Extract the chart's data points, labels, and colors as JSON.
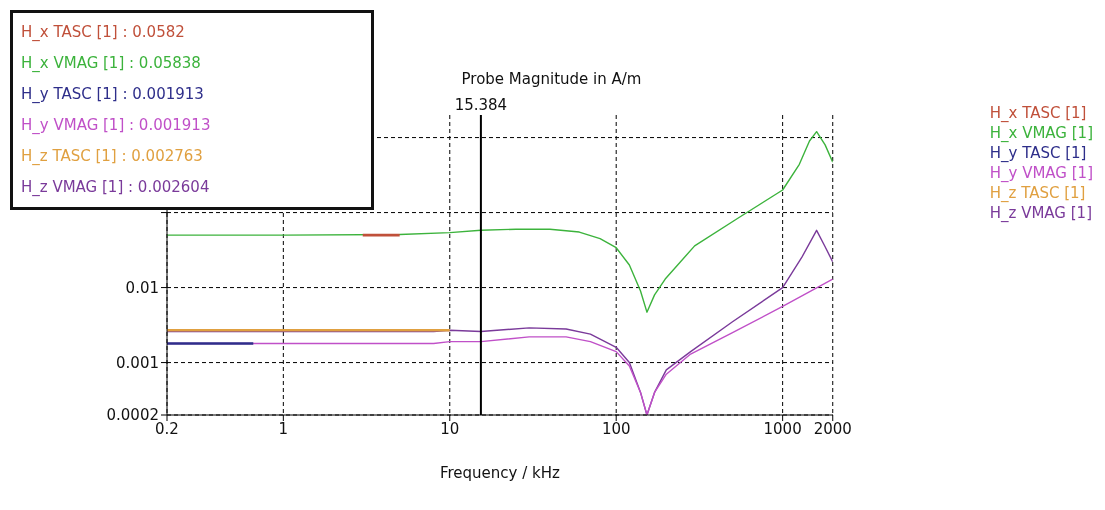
{
  "chart_data": {
    "type": "line",
    "title": "Probe Magnitude in A/m",
    "xlabel": "Frequency / kHz",
    "log": "xy",
    "grid": true,
    "legend": "right",
    "xlim": [
      0.2,
      2000
    ],
    "xticks": [
      0.2,
      1,
      10,
      100,
      1000,
      2000
    ],
    "ylim": [
      0.0002,
      2
    ],
    "yticks": [
      0.0002,
      0.001,
      0.01,
      {
        "value": 0.1,
        "label": null
      },
      {
        "value": 1,
        "label": null
      }
    ],
    "ref_lines": [
      {
        "axis": "x",
        "value": 15.384,
        "label": "15.384",
        "color": "#000000"
      }
    ],
    "annotations": [
      "H_x TASC [1] : 0.0582",
      "H_x VMAG [1] : 0.05838",
      "H_y TASC [1] : 0.001913",
      "H_y VMAG [1] : 0.001913",
      "H_z TASC [1] : 0.002763",
      "H_z VMAG [1] : 0.002604"
    ],
    "series": [
      {
        "name": "H_x TASC [1]",
        "color": "#c0503a",
        "x": [
          3,
          4,
          5
        ],
        "values": [
          0.05,
          0.05,
          0.05
        ]
      },
      {
        "name": "H_x VMAG [1]",
        "color": "#3cb33c",
        "x": [
          0.2,
          1,
          5,
          10,
          15.384,
          25,
          40,
          60,
          80,
          100,
          120,
          140,
          153,
          170,
          197,
          296,
          547,
          1000,
          1260,
          1450,
          1600,
          1800,
          2000
        ],
        "values": [
          0.05,
          0.05,
          0.051,
          0.054,
          0.058,
          0.06,
          0.06,
          0.055,
          0.045,
          0.034,
          0.02,
          0.009,
          0.0047,
          0.008,
          0.013,
          0.036,
          0.086,
          0.2,
          0.44,
          0.9,
          1.2,
          0.8,
          0.47
        ]
      },
      {
        "name": "H_y TASC [1]",
        "color": "#2e2e8a",
        "x": [
          0.2,
          0.4,
          0.66
        ],
        "values": [
          0.0018,
          0.0018,
          0.0018
        ]
      },
      {
        "name": "H_y VMAG [1]",
        "color": "#c050c8",
        "x": [
          0.2,
          1,
          8,
          10,
          15.384,
          30,
          50,
          70,
          100,
          120,
          140,
          153,
          170,
          200,
          280,
          500,
          1000,
          2000
        ],
        "values": [
          0.0018,
          0.0018,
          0.0018,
          0.0019,
          0.0019,
          0.0022,
          0.0022,
          0.0019,
          0.0014,
          0.0009,
          0.0004,
          0.0002,
          0.0004,
          0.0007,
          0.0013,
          0.0025,
          0.0056,
          0.013
        ]
      },
      {
        "name": "H_z TASC [1]",
        "color": "#e0a040",
        "x": [
          0.2,
          1,
          10
        ],
        "values": [
          0.0027,
          0.0027,
          0.0027
        ]
      },
      {
        "name": "H_z VMAG [1]",
        "color": "#7a3a9a",
        "x": [
          0.2,
          1,
          8,
          10,
          15.384,
          30,
          50,
          70,
          100,
          120,
          140,
          153,
          170,
          200,
          280,
          500,
          1000,
          1300,
          1600,
          1800,
          2000
        ],
        "values": [
          0.0026,
          0.0026,
          0.0026,
          0.0027,
          0.0026,
          0.0029,
          0.0028,
          0.0024,
          0.0016,
          0.001,
          0.0004,
          0.0002,
          0.0004,
          0.0008,
          0.0014,
          0.0035,
          0.01,
          0.025,
          0.058,
          0.035,
          0.022
        ]
      }
    ]
  }
}
